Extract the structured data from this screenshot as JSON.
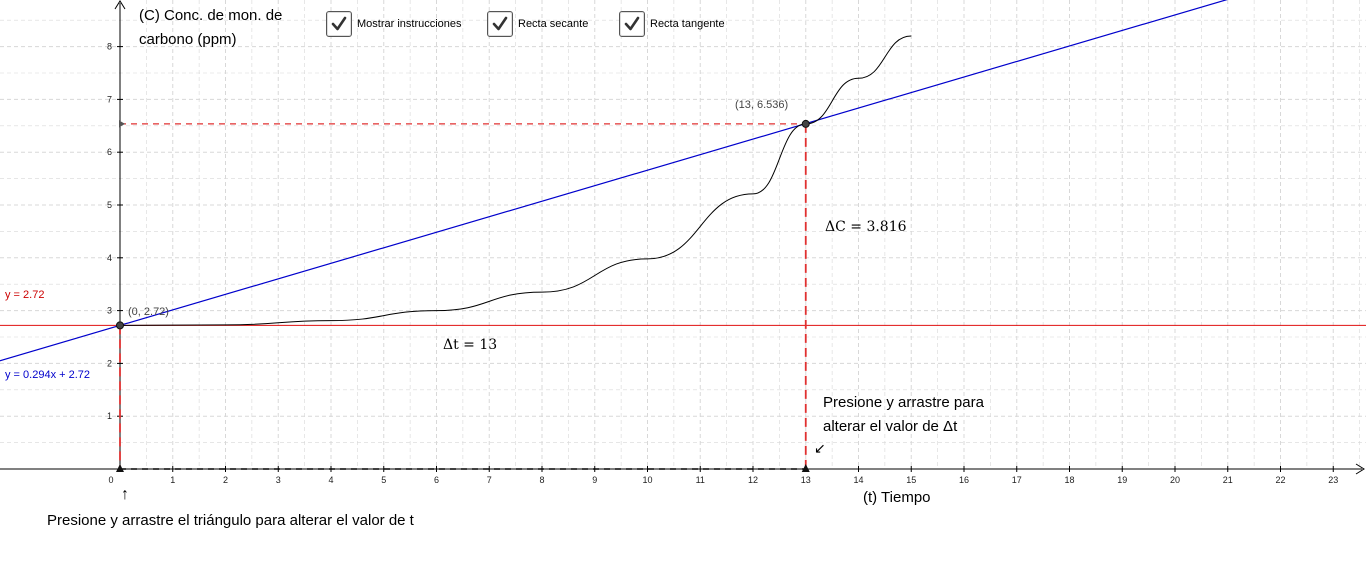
{
  "y_axis_title_line1": "(C) Conc. de mon. de",
  "y_axis_title_line2": "carbono (ppm)",
  "x_axis_title": "(t) Tiempo",
  "checkboxes": [
    {
      "label": "Mostrar instrucciones",
      "checked": true
    },
    {
      "label": "Recta secante",
      "checked": true
    },
    {
      "label": "Recta tangente",
      "checked": true
    }
  ],
  "point_A_label": "(0, 2.72)",
  "point_B_label": "(13, 6.536)",
  "delta_c_label": "ΔC = 3.816",
  "delta_t_label": "Δt = 13",
  "horizontal_line_eq": "y = 2.72",
  "secant_line_eq": "y = 0.294x + 2.72",
  "hint_drag_dt_line1": "Presione y arrastre para",
  "hint_drag_dt_line2": "alterar el valor de Δt",
  "hint_drag_dt_arrow": "↙",
  "hint_drag_t": "Presione y arrastre el triángulo para alterar el valor de t",
  "hint_drag_t_arrow": "↑",
  "x_ticks": [
    "0",
    "1",
    "2",
    "3",
    "4",
    "5",
    "6",
    "7",
    "8",
    "9",
    "10",
    "11",
    "12",
    "13",
    "14",
    "15",
    "16",
    "17",
    "18",
    "19",
    "20",
    "21",
    "22",
    "23"
  ],
  "y_ticks": [
    "1",
    "2",
    "3",
    "4",
    "5",
    "6",
    "7",
    "8"
  ],
  "colors": {
    "curve": "#000000",
    "secant": "#0000cc",
    "horizontal": "#e01010",
    "dashed": "#e03030",
    "grid": "#d8d8d8"
  },
  "chart_data": {
    "type": "line",
    "xlabel": "(t) Tiempo",
    "ylabel": "(C) Conc. de mon. de carbono (ppm)",
    "xlim": [
      0,
      23
    ],
    "ylim": [
      0,
      8
    ],
    "grid": true,
    "curve": {
      "x": [
        0,
        2,
        4,
        6,
        8,
        10,
        12,
        13,
        14,
        15
      ],
      "y": [
        2.72,
        2.73,
        2.81,
        3.0,
        3.35,
        3.98,
        5.21,
        6.536,
        7.4,
        8.2
      ]
    },
    "secant": {
      "slope": 0.294,
      "intercept": 2.72
    },
    "horizontal": {
      "y": 2.72
    },
    "points": [
      {
        "x": 0,
        "y": 2.72
      },
      {
        "x": 13,
        "y": 6.536
      }
    ],
    "delta_t": 13,
    "delta_c": 3.816
  }
}
